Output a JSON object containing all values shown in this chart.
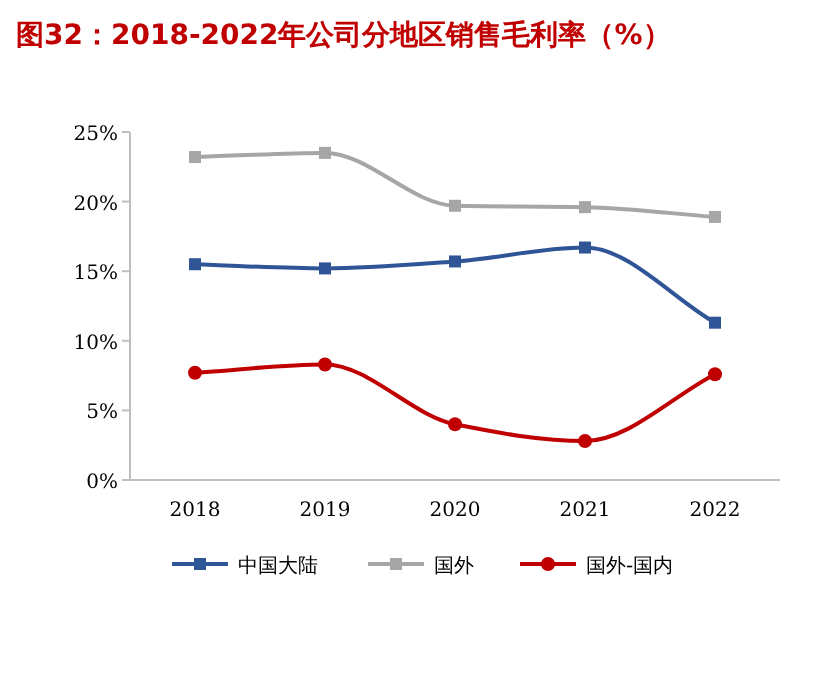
{
  "chart_data": {
    "type": "line",
    "title": "图32：2018-2022年公司分地区销售毛利率（%）",
    "categories": [
      "2018",
      "2019",
      "2020",
      "2021",
      "2022"
    ],
    "series": [
      {
        "name": "中国大陆",
        "color": "#2f5597",
        "marker": "square",
        "values": [
          15.5,
          15.2,
          15.7,
          16.7,
          11.3
        ]
      },
      {
        "name": "国外",
        "color": "#a6a6a6",
        "marker": "square",
        "values": [
          23.2,
          23.5,
          19.7,
          19.6,
          18.9
        ]
      },
      {
        "name": "国外-国内",
        "color": "#c00000",
        "marker": "circle",
        "values": [
          7.7,
          8.3,
          4.0,
          2.8,
          7.6
        ]
      }
    ],
    "ylim": [
      0,
      25
    ],
    "yticks": [
      {
        "value": 0,
        "label": "0%"
      },
      {
        "value": 5,
        "label": "5%"
      },
      {
        "value": 10,
        "label": "10%"
      },
      {
        "value": 15,
        "label": "15%"
      },
      {
        "value": 20,
        "label": "20%"
      },
      {
        "value": 25,
        "label": "25%"
      }
    ],
    "legend": "bottom",
    "grid": false
  }
}
